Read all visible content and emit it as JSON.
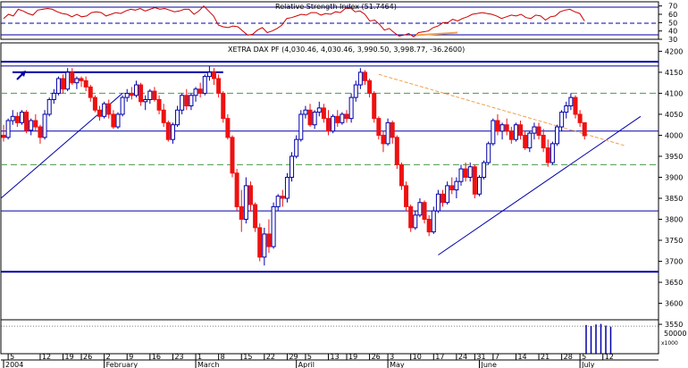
{
  "rsi_panel": {
    "title": "Relative Strength Index (51.7464)",
    "ticks": [
      "70",
      "60",
      "50",
      "40",
      "30"
    ]
  },
  "price_panel": {
    "title": "XETRA DAX PF (4,030.46, 4,030.46, 3,990.50, 3,998.77, -36.2600)"
  },
  "volume_panel": {
    "tick": "50000",
    "unit": "x1000"
  },
  "colors": {
    "up": "#0000aa",
    "down": "#ee1111",
    "line": "#0000aa",
    "dashed": "#4a9a4a",
    "trend": "#f0a050",
    "rsi": "#cc0000"
  },
  "chart_data": [
    {
      "type": "line",
      "title": "Relative Strength Index (51.7464)",
      "ylim": [
        30,
        75
      ],
      "yticks": [
        70,
        60,
        50,
        40,
        30
      ],
      "series": [
        {
          "values": [
            55,
            60,
            58,
            66,
            64,
            61,
            59,
            65,
            66,
            67,
            66,
            63,
            61,
            60,
            57,
            60,
            57,
            58,
            62,
            63,
            62,
            58,
            60,
            62,
            61,
            64,
            66,
            65,
            67,
            64,
            66,
            68,
            66,
            67,
            65,
            63,
            64,
            66,
            66,
            60,
            64,
            70,
            64,
            58,
            47,
            45,
            44,
            46,
            45,
            40,
            35,
            36,
            41,
            44,
            38,
            40,
            43,
            47,
            55,
            56,
            58,
            60,
            59,
            62,
            62,
            59,
            61,
            60,
            63,
            62,
            67,
            68,
            63,
            64,
            60,
            52,
            53,
            48,
            41,
            43,
            38,
            34,
            35,
            37,
            33,
            38,
            39,
            40,
            44,
            46,
            50,
            50,
            54,
            52,
            55,
            57,
            60,
            61,
            62,
            61,
            60,
            58,
            55,
            57,
            59,
            58,
            60,
            56,
            55,
            59,
            58,
            53,
            57,
            58,
            63,
            65,
            66,
            63,
            61,
            52
          ]
        }
      ]
    },
    {
      "type": "candlestick",
      "title": "XETRA DAX PF (4,030.46, 4,030.46, 3,990.50, 3,998.77, -36.2600)",
      "ylim": [
        3480,
        4220
      ],
      "yticks": [
        4200,
        4150,
        4100,
        4050,
        4000,
        3950,
        3900,
        3850,
        3800,
        3750,
        3700,
        3650,
        3600,
        3550
      ],
      "xticks": [
        {
          "i": 1,
          "label": "5"
        },
        {
          "i": 8,
          "label": "12"
        },
        {
          "i": 13,
          "label": "19"
        },
        {
          "i": 17,
          "label": "26"
        },
        {
          "i": 22,
          "label": "2"
        },
        {
          "i": 27,
          "label": "9"
        },
        {
          "i": 32,
          "label": "16"
        },
        {
          "i": 37,
          "label": "23"
        },
        {
          "i": 42,
          "label": "1"
        },
        {
          "i": 47,
          "label": "8"
        },
        {
          "i": 52,
          "label": "15"
        },
        {
          "i": 57,
          "label": "22"
        },
        {
          "i": 62,
          "label": "29"
        },
        {
          "i": 66,
          "label": "5"
        },
        {
          "i": 71,
          "label": "13"
        },
        {
          "i": 75,
          "label": "19"
        },
        {
          "i": 80,
          "label": "26"
        },
        {
          "i": 84,
          "label": "3"
        },
        {
          "i": 89,
          "label": "10"
        },
        {
          "i": 94,
          "label": "17"
        },
        {
          "i": 99,
          "label": "24"
        },
        {
          "i": 103,
          "label": "31"
        },
        {
          "i": 107,
          "label": "7"
        },
        {
          "i": 112,
          "label": "14"
        },
        {
          "i": 117,
          "label": "21"
        },
        {
          "i": 122,
          "label": "28"
        },
        {
          "i": 126,
          "label": "5"
        },
        {
          "i": 131,
          "label": "12"
        }
      ],
      "months": [
        {
          "i": 0,
          "label": "2004"
        },
        {
          "i": 22,
          "label": "February"
        },
        {
          "i": 42,
          "label": "March"
        },
        {
          "i": 64,
          "label": "April"
        },
        {
          "i": 84,
          "label": "May"
        },
        {
          "i": 104,
          "label": "June"
        },
        {
          "i": 126,
          "label": "July"
        }
      ],
      "ohlc": [
        [
          4000,
          4025,
          3985,
          3995
        ],
        [
          3995,
          4040,
          3990,
          4035
        ],
        [
          4035,
          4060,
          4025,
          4045
        ],
        [
          4045,
          4055,
          4020,
          4030
        ],
        [
          4030,
          4060,
          4025,
          4055
        ],
        [
          4055,
          4060,
          4005,
          4012
        ],
        [
          4012,
          4040,
          4000,
          4035
        ],
        [
          4035,
          4050,
          4010,
          4020
        ],
        [
          4020,
          4025,
          3980,
          3995
        ],
        [
          3995,
          4060,
          3990,
          4050
        ],
        [
          4050,
          4090,
          4045,
          4085
        ],
        [
          4085,
          4110,
          4075,
          4100
        ],
        [
          4100,
          4140,
          4095,
          4135
        ],
        [
          4135,
          4145,
          4100,
          4110
        ],
        [
          4110,
          4160,
          4105,
          4150
        ],
        [
          4150,
          4160,
          4120,
          4125
        ],
        [
          4125,
          4140,
          4110,
          4135
        ],
        [
          4135,
          4140,
          4115,
          4130
        ],
        [
          4130,
          4140,
          4105,
          4115
        ],
        [
          4115,
          4120,
          4080,
          4090
        ],
        [
          4090,
          4095,
          4055,
          4060
        ],
        [
          4060,
          4070,
          4035,
          4045
        ],
        [
          4045,
          4080,
          4040,
          4075
        ],
        [
          4075,
          4085,
          4040,
          4050
        ],
        [
          4050,
          4060,
          4015,
          4020
        ],
        [
          4020,
          4055,
          4015,
          4050
        ],
        [
          4050,
          4095,
          4045,
          4090
        ],
        [
          4090,
          4110,
          4080,
          4100
        ],
        [
          4100,
          4115,
          4085,
          4095
        ],
        [
          4095,
          4130,
          4090,
          4120
        ],
        [
          4120,
          4125,
          4070,
          4080
        ],
        [
          4080,
          4095,
          4060,
          4085
        ],
        [
          4085,
          4110,
          4075,
          4105
        ],
        [
          4105,
          4115,
          4080,
          4085
        ],
        [
          4085,
          4095,
          4050,
          4060
        ],
        [
          4060,
          4075,
          4020,
          4030
        ],
        [
          4030,
          4035,
          3985,
          3990
        ],
        [
          3990,
          4030,
          3980,
          4025
        ],
        [
          4025,
          4070,
          4020,
          4060
        ],
        [
          4060,
          4100,
          4050,
          4095
        ],
        [
          4095,
          4110,
          4060,
          4070
        ],
        [
          4070,
          4100,
          4060,
          4095
        ],
        [
          4095,
          4115,
          4080,
          4110
        ],
        [
          4110,
          4125,
          4090,
          4100
        ],
        [
          4100,
          4145,
          4095,
          4140
        ],
        [
          4140,
          4165,
          4130,
          4150
        ],
        [
          4150,
          4160,
          4120,
          4135
        ],
        [
          4135,
          4145,
          4090,
          4100
        ],
        [
          4100,
          4105,
          4030,
          4040
        ],
        [
          4040,
          4050,
          3990,
          3995
        ],
        [
          3995,
          4000,
          3900,
          3910
        ],
        [
          3910,
          3920,
          3820,
          3830
        ],
        [
          3830,
          3870,
          3770,
          3800
        ],
        [
          3800,
          3900,
          3790,
          3880
        ],
        [
          3880,
          3890,
          3820,
          3835
        ],
        [
          3835,
          3840,
          3770,
          3780
        ],
        [
          3780,
          3790,
          3700,
          3710
        ],
        [
          3710,
          3780,
          3690,
          3765
        ],
        [
          3765,
          3800,
          3720,
          3735
        ],
        [
          3735,
          3840,
          3730,
          3830
        ],
        [
          3830,
          3860,
          3820,
          3855
        ],
        [
          3855,
          3870,
          3830,
          3850
        ],
        [
          3850,
          3910,
          3840,
          3900
        ],
        [
          3900,
          3960,
          3890,
          3950
        ],
        [
          3950,
          4000,
          3945,
          3990
        ],
        [
          3990,
          4060,
          3985,
          4050
        ],
        [
          4050,
          4070,
          4040,
          4060
        ],
        [
          4060,
          4075,
          4020,
          4025
        ],
        [
          4025,
          4060,
          4015,
          4055
        ],
        [
          4055,
          4080,
          4045,
          4065
        ],
        [
          4065,
          4075,
          4030,
          4040
        ],
        [
          4040,
          4060,
          4000,
          4010
        ],
        [
          4010,
          4050,
          4005,
          4045
        ],
        [
          4045,
          4060,
          4020,
          4030
        ],
        [
          4030,
          4055,
          4025,
          4050
        ],
        [
          4050,
          4060,
          4030,
          4040
        ],
        [
          4040,
          4100,
          4030,
          4090
        ],
        [
          4090,
          4130,
          4080,
          4120
        ],
        [
          4120,
          4160,
          4110,
          4150
        ],
        [
          4150,
          4155,
          4120,
          4130
        ],
        [
          4130,
          4135,
          4090,
          4100
        ],
        [
          4100,
          4105,
          4030,
          4040
        ],
        [
          4040,
          4045,
          3990,
          4000
        ],
        [
          4000,
          4010,
          3960,
          3980
        ],
        [
          3980,
          4040,
          3975,
          4030
        ],
        [
          4030,
          4035,
          3980,
          3995
        ],
        [
          3995,
          4000,
          3920,
          3930
        ],
        [
          3930,
          3935,
          3870,
          3880
        ],
        [
          3880,
          3890,
          3820,
          3830
        ],
        [
          3830,
          3835,
          3770,
          3780
        ],
        [
          3780,
          3820,
          3775,
          3810
        ],
        [
          3810,
          3850,
          3805,
          3840
        ],
        [
          3840,
          3845,
          3790,
          3800
        ],
        [
          3800,
          3810,
          3760,
          3770
        ],
        [
          3770,
          3830,
          3765,
          3820
        ],
        [
          3820,
          3870,
          3815,
          3860
        ],
        [
          3860,
          3870,
          3830,
          3840
        ],
        [
          3840,
          3890,
          3835,
          3880
        ],
        [
          3880,
          3900,
          3860,
          3870
        ],
        [
          3870,
          3900,
          3850,
          3890
        ],
        [
          3890,
          3930,
          3880,
          3920
        ],
        [
          3920,
          3935,
          3890,
          3900
        ],
        [
          3900,
          3935,
          3890,
          3925
        ],
        [
          3925,
          3930,
          3850,
          3860
        ],
        [
          3860,
          3905,
          3855,
          3900
        ],
        [
          3900,
          3940,
          3895,
          3935
        ],
        [
          3935,
          3985,
          3930,
          3980
        ],
        [
          3980,
          4040,
          3975,
          4035
        ],
        [
          4035,
          4050,
          4000,
          4010
        ],
        [
          4010,
          4030,
          3990,
          4025
        ],
        [
          4025,
          4040,
          4000,
          4010
        ],
        [
          4010,
          4020,
          3980,
          3990
        ],
        [
          3990,
          4030,
          3985,
          4025
        ],
        [
          4025,
          4035,
          3990,
          4000
        ],
        [
          4000,
          4010,
          3965,
          3970
        ],
        [
          3970,
          4010,
          3960,
          4005
        ],
        [
          4005,
          4030,
          3990,
          4020
        ],
        [
          4020,
          4030,
          3990,
          4000
        ],
        [
          4000,
          4015,
          3960,
          3970
        ],
        [
          3970,
          3990,
          3925,
          3935
        ],
        [
          3935,
          3985,
          3930,
          3980
        ],
        [
          3980,
          4025,
          3975,
          4020
        ],
        [
          4020,
          4060,
          4010,
          4055
        ],
        [
          4055,
          4080,
          4040,
          4070
        ],
        [
          4070,
          4100,
          4060,
          4090
        ],
        [
          4090,
          4095,
          4040,
          4050
        ],
        [
          4050,
          4060,
          4020,
          4030
        ],
        [
          4030,
          4030,
          3990,
          3999
        ]
      ],
      "volume_bars_last": [
        52000,
        50000,
        53000,
        54000,
        51000,
        49000
      ]
    }
  ]
}
